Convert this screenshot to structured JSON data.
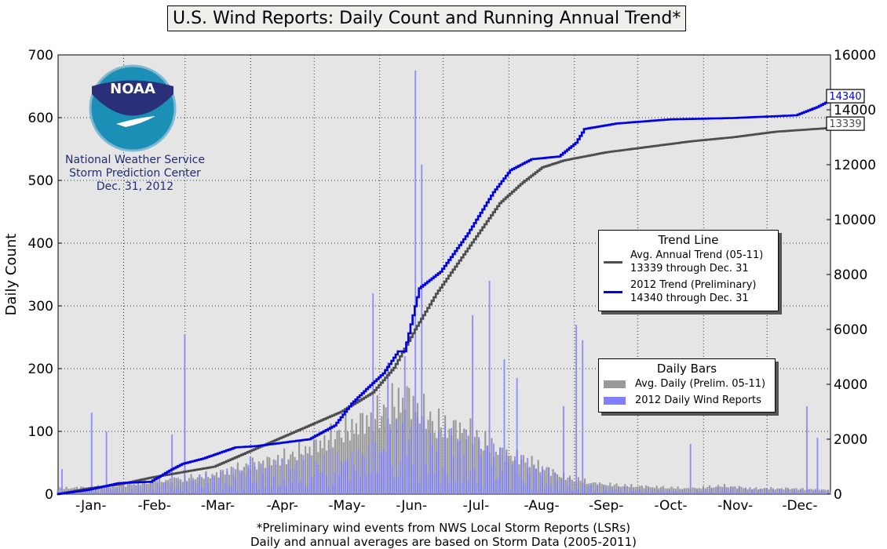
{
  "title": "U.S. Wind Reports: Daily Count and Running Annual Trend*",
  "logo": {
    "text": "NOAA",
    "lines": [
      "National Weather Service",
      "Storm Prediction Center",
      "Dec. 31, 2012"
    ]
  },
  "legend_trend": {
    "title": "Trend Line",
    "items": [
      {
        "line1": "Avg. Annual Trend (05-11)",
        "line2": "13339 through Dec. 31",
        "color": "#4d4d4d"
      },
      {
        "line1": "2012 Trend (Preliminary)",
        "line2": "14340 through Dec. 31",
        "color": "#0000e6"
      }
    ]
  },
  "legend_bars": {
    "title": "Daily Bars",
    "items": [
      {
        "label": "Avg. Daily (Prelim. 05-11)",
        "color": "#808080"
      },
      {
        "label": "2012 Daily Wind Reports",
        "color": "#8080ff"
      }
    ]
  },
  "footnote": {
    "line1": "*Preliminary wind events from NWS Local Storm Reports (LSRs)",
    "line2": "Daily and annual averages are based on Storm Data (2005-2011)"
  },
  "chart_data": {
    "type": "bar+line",
    "x_unit": "day of year",
    "xlim": [
      1,
      366
    ],
    "x_tick_labels": [
      "-Jan-",
      "-Feb-",
      "-Mar-",
      "-Apr-",
      "-May-",
      "-Jun-",
      "-Jul-",
      "-Aug-",
      "-Sep-",
      "-Oct-",
      "-Nov-",
      "-Dec-"
    ],
    "month_start_days": [
      1,
      32,
      61,
      92,
      122,
      153,
      183,
      214,
      245,
      275,
      306,
      336
    ],
    "y_left": {
      "label": "Daily Count",
      "lim": [
        0,
        700
      ],
      "ticks": [
        0,
        100,
        200,
        300,
        400,
        500,
        600,
        700
      ]
    },
    "y_right": {
      "lim": [
        0,
        16000
      ],
      "ticks": [
        0,
        2000,
        4000,
        6000,
        8000,
        10000,
        12000,
        14000,
        16000
      ]
    },
    "grid": true,
    "end_labels": [
      {
        "value": 14340,
        "text": "14340",
        "color": "#0000e6"
      },
      {
        "value": 13339,
        "text": "13339",
        "color": "#4d4d4d"
      }
    ],
    "series": [
      {
        "name": "Avg. Annual Trend (05-11)",
        "axis": "right",
        "kind": "line",
        "color": "#4d4d4d",
        "x": [
          1,
          15,
          30,
          45,
          60,
          75,
          90,
          105,
          120,
          135,
          150,
          160,
          170,
          180,
          190,
          200,
          210,
          220,
          230,
          240,
          250,
          260,
          270,
          280,
          300,
          320,
          340,
          366
        ],
        "y": [
          0,
          200,
          350,
          600,
          800,
          1000,
          1500,
          2000,
          2500,
          3000,
          3700,
          4600,
          6000,
          7300,
          8400,
          9500,
          10600,
          11300,
          11900,
          12150,
          12300,
          12450,
          12550,
          12650,
          12850,
          13000,
          13200,
          13339
        ]
      },
      {
        "name": "2012 Trend (Preliminary)",
        "axis": "right",
        "kind": "line",
        "color": "#0000e6",
        "x": [
          1,
          15,
          30,
          45,
          55,
          60,
          70,
          85,
          95,
          110,
          120,
          132,
          140,
          148,
          155,
          162,
          165,
          172,
          177,
          182,
          195,
          207,
          215,
          225,
          238,
          246,
          250,
          265,
          290,
          320,
          350,
          360,
          366
        ],
        "y": [
          0,
          150,
          400,
          450,
          900,
          1100,
          1300,
          1700,
          1750,
          1900,
          2000,
          2500,
          3300,
          3900,
          4400,
          5200,
          5200,
          7500,
          7800,
          8100,
          9500,
          11000,
          11800,
          12200,
          12300,
          12800,
          13300,
          13500,
          13650,
          13700,
          13800,
          14100,
          14340
        ]
      },
      {
        "name": "Avg. Daily (Prelim. 05-11)",
        "axis": "left",
        "kind": "bar",
        "color": "#808080",
        "x": [
          1,
          15,
          30,
          45,
          60,
          75,
          90,
          105,
          120,
          135,
          150,
          165,
          180,
          195,
          210,
          225,
          240,
          255,
          270,
          285,
          300,
          315,
          330,
          345,
          366
        ],
        "y": [
          8,
          10,
          12,
          18,
          22,
          28,
          40,
          50,
          65,
          90,
          110,
          140,
          100,
          90,
          60,
          45,
          25,
          15,
          12,
          10,
          8,
          12,
          8,
          8,
          6
        ]
      },
      {
        "name": "2012 Daily Wind Reports",
        "axis": "left",
        "kind": "bar",
        "color": "#8080ff",
        "x": [
          3,
          17,
          24,
          55,
          61,
          92,
          150,
          157,
          165,
          170,
          173,
          197,
          205,
          212,
          218,
          240,
          246,
          249,
          300,
          355,
          360
        ],
        "y": [
          40,
          130,
          100,
          95,
          255,
          60,
          320,
          210,
          220,
          675,
          525,
          285,
          340,
          215,
          185,
          140,
          270,
          245,
          80,
          140,
          90
        ],
        "note": "background daily values vary roughly 0-90 on most days"
      }
    ]
  }
}
